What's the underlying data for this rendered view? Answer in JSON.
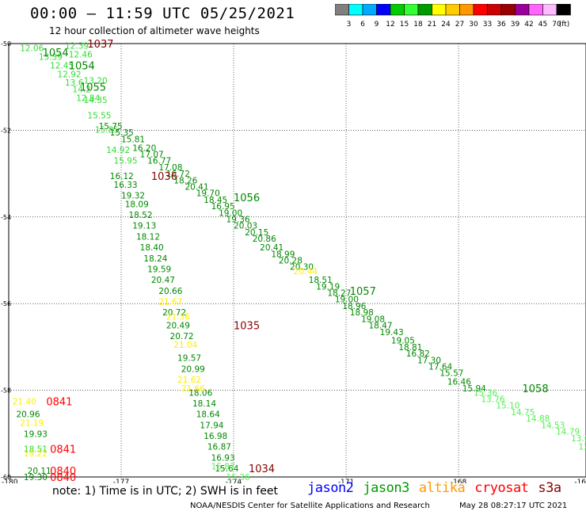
{
  "header": {
    "title": "00:00 – 11:59 UTC 05/25/2021",
    "subtitle": "12 hour collection of altimeter wave heights"
  },
  "colorbar": {
    "colors": [
      "#808080",
      "#00ffff",
      "#00aaff",
      "#0000ff",
      "#00cc00",
      "#33ff33",
      "#009900",
      "#ffff00",
      "#ffcc00",
      "#ff9900",
      "#ff0000",
      "#cc0000",
      "#990000",
      "#990099",
      "#ff66ff",
      "#ffbbff",
      "#000000"
    ],
    "labels": [
      "3",
      "6",
      "9",
      "12",
      "15",
      "18",
      "21",
      "24",
      "27",
      "30",
      "33",
      "36",
      "39",
      "42",
      "45",
      "70"
    ],
    "unit": "(ft)"
  },
  "map": {
    "lon_ticks": [
      "-180",
      "-177",
      "-174",
      "-171",
      "-168",
      "-16"
    ],
    "lat_ticks": [
      "-50",
      "-52",
      "-54",
      "-56",
      "-58",
      "-60"
    ],
    "tracks": [
      {
        "color": "#33dd33",
        "points": [
          {
            "t": "12.06",
            "lon": -179.7,
            "lat": -50.1
          },
          {
            "t": "13.39",
            "lon": -179.2,
            "lat": -50.3
          },
          {
            "t": "12.45",
            "lon": -178.9,
            "lat": -50.5
          },
          {
            "t": "12.92",
            "lon": -178.7,
            "lat": -50.7
          },
          {
            "t": "13.6",
            "lon": -178.5,
            "lat": -50.9
          },
          {
            "t": "14.2",
            "lon": -178.3,
            "lat": -51.05
          },
          {
            "t": "12.84",
            "lon": -178.2,
            "lat": -51.25
          },
          {
            "t": "14.35",
            "lon": -178.0,
            "lat": -51.3
          },
          {
            "t": "15.55",
            "lon": -177.9,
            "lat": -51.65
          },
          {
            "t": "15.85",
            "lon": -177.7,
            "lat": -51.98
          },
          {
            "t": "14.92",
            "lon": -177.4,
            "lat": -52.45
          },
          {
            "t": "15.95",
            "lon": -177.2,
            "lat": -52.7
          },
          {
            "t": "13.20",
            "lon": -178.0,
            "lat": -50.85
          },
          {
            "t": "12.46",
            "lon": -178.4,
            "lat": -50.25
          },
          {
            "t": "12.39",
            "lon": -178.5,
            "lat": -50.05
          }
        ]
      },
      {
        "color": "#008800",
        "points": [
          {
            "t": "15.75",
            "lon": -177.6,
            "lat": -51.9
          },
          {
            "t": "15.35",
            "lon": -177.3,
            "lat": -52.05
          },
          {
            "t": "15.81",
            "lon": -177.0,
            "lat": -52.2
          },
          {
            "t": "16.20",
            "lon": -176.7,
            "lat": -52.4
          },
          {
            "t": "17.07",
            "lon": -176.5,
            "lat": -52.55
          },
          {
            "t": "16.77",
            "lon": -176.3,
            "lat": -52.7
          },
          {
            "t": "17.08",
            "lon": -176.0,
            "lat": -52.85
          },
          {
            "t": "16.72",
            "lon": -175.8,
            "lat": -53.0
          },
          {
            "t": "18.26",
            "lon": -175.6,
            "lat": -53.15
          },
          {
            "t": "20.41",
            "lon": -175.3,
            "lat": -53.3
          },
          {
            "t": "19.70",
            "lon": -175.0,
            "lat": -53.45
          },
          {
            "t": "18.45",
            "lon": -174.8,
            "lat": -53.6
          },
          {
            "t": "16.95",
            "lon": -174.6,
            "lat": -53.75
          },
          {
            "t": "19.00",
            "lon": -174.4,
            "lat": -53.9
          },
          {
            "t": "19.36",
            "lon": -174.2,
            "lat": -54.05
          },
          {
            "t": "20.03",
            "lon": -174.0,
            "lat": -54.2
          },
          {
            "t": "20.15",
            "lon": -173.7,
            "lat": -54.35
          },
          {
            "t": "20.86",
            "lon": -173.5,
            "lat": -54.5
          },
          {
            "t": "20.41",
            "lon": -173.3,
            "lat": -54.7
          },
          {
            "t": "18.99",
            "lon": -173.0,
            "lat": -54.85
          },
          {
            "t": "20.28",
            "lon": -172.8,
            "lat": -55.0
          },
          {
            "t": "20.30",
            "lon": -172.5,
            "lat": -55.15
          },
          {
            "t": "18.51",
            "lon": -172.0,
            "lat": -55.45
          },
          {
            "t": "19.19",
            "lon": -171.8,
            "lat": -55.6
          },
          {
            "t": "18.27",
            "lon": -171.5,
            "lat": -55.75
          },
          {
            "t": "19.00",
            "lon": -171.3,
            "lat": -55.9
          },
          {
            "t": "18.96",
            "lon": -171.1,
            "lat": -56.05
          },
          {
            "t": "18.98",
            "lon": -170.9,
            "lat": -56.2
          },
          {
            "t": "19.08",
            "lon": -170.6,
            "lat": -56.35
          },
          {
            "t": "18.47",
            "lon": -170.4,
            "lat": -56.5
          },
          {
            "t": "19.43",
            "lon": -170.1,
            "lat": -56.65
          },
          {
            "t": "19.05",
            "lon": -169.8,
            "lat": -56.85
          },
          {
            "t": "18.81",
            "lon": -169.6,
            "lat": -57.0
          },
          {
            "t": "16.82",
            "lon": -169.4,
            "lat": -57.15
          },
          {
            "t": "17.30",
            "lon": -169.1,
            "lat": -57.3
          },
          {
            "t": "17.64",
            "lon": -168.8,
            "lat": -57.45
          },
          {
            "t": "15.57",
            "lon": -168.5,
            "lat": -57.6
          },
          {
            "t": "16.46",
            "lon": -168.3,
            "lat": -57.8
          },
          {
            "t": "15.94",
            "lon": -167.9,
            "lat": -57.95
          }
        ]
      },
      {
        "color": "#55ee55",
        "points": [
          {
            "t": "15.36",
            "lon": -167.6,
            "lat": -58.05
          },
          {
            "t": "13.76",
            "lon": -167.4,
            "lat": -58.2
          },
          {
            "t": "15.10",
            "lon": -167.0,
            "lat": -58.35
          },
          {
            "t": "14.75",
            "lon": -166.6,
            "lat": -58.5
          },
          {
            "t": "14.88",
            "lon": -166.2,
            "lat": -58.65
          },
          {
            "t": "14.53",
            "lon": -165.8,
            "lat": -58.8
          },
          {
            "t": "14.79",
            "lon": -165.4,
            "lat": -58.95
          },
          {
            "t": "13.64",
            "lon": -165.0,
            "lat": -59.1
          },
          {
            "t": "12.98",
            "lon": -164.8,
            "lat": -59.3
          }
        ]
      },
      {
        "color": "#008800",
        "points": [
          {
            "t": "16.12",
            "lon": -177.3,
            "lat": -53.05
          },
          {
            "t": "16.33",
            "lon": -177.2,
            "lat": -53.25
          },
          {
            "t": "19.32",
            "lon": -177.0,
            "lat": -53.5
          },
          {
            "t": "18.09",
            "lon": -176.9,
            "lat": -53.7
          },
          {
            "t": "18.52",
            "lon": -176.8,
            "lat": -53.95
          },
          {
            "t": "19.13",
            "lon": -176.7,
            "lat": -54.2
          },
          {
            "t": "18.12",
            "lon": -176.6,
            "lat": -54.45
          },
          {
            "t": "18.40",
            "lon": -176.5,
            "lat": -54.7
          },
          {
            "t": "18.24",
            "lon": -176.4,
            "lat": -54.95
          },
          {
            "t": "19.59",
            "lon": -176.3,
            "lat": -55.2
          },
          {
            "t": "20.47",
            "lon": -176.2,
            "lat": -55.45
          },
          {
            "t": "20.66",
            "lon": -176.0,
            "lat": -55.7
          },
          {
            "t": "20.72",
            "lon": -175.9,
            "lat": -56.2
          },
          {
            "t": "20.49",
            "lon": -175.8,
            "lat": -56.5
          },
          {
            "t": "20.72",
            "lon": -175.7,
            "lat": -56.75
          },
          {
            "t": "19.57",
            "lon": -175.5,
            "lat": -57.25
          },
          {
            "t": "20.99",
            "lon": -175.4,
            "lat": -57.5
          },
          {
            "t": "18.06",
            "lon": -175.2,
            "lat": -58.05
          },
          {
            "t": "18.14",
            "lon": -175.1,
            "lat": -58.3
          },
          {
            "t": "18.64",
            "lon": -175.0,
            "lat": -58.55
          },
          {
            "t": "17.94",
            "lon": -174.9,
            "lat": -58.8
          },
          {
            "t": "16.98",
            "lon": -174.8,
            "lat": -59.05
          },
          {
            "t": "16.87",
            "lon": -174.7,
            "lat": -59.3
          },
          {
            "t": "16.93",
            "lon": -174.6,
            "lat": -59.55
          },
          {
            "t": "15.64",
            "lon": -174.5,
            "lat": -59.8
          }
        ]
      },
      {
        "color": "#ffee00",
        "points": [
          {
            "t": "21.67",
            "lon": -176.0,
            "lat": -55.95
          },
          {
            "t": "21.36",
            "lon": -175.8,
            "lat": -56.3
          },
          {
            "t": "21.04",
            "lon": -175.6,
            "lat": -56.95
          },
          {
            "t": "21.62",
            "lon": -175.5,
            "lat": -57.75
          },
          {
            "t": "21.66",
            "lon": -175.4,
            "lat": -57.95
          },
          {
            "t": "20.44",
            "lon": -172.4,
            "lat": -55.25
          }
        ]
      },
      {
        "color": "#55ee55",
        "points": [
          {
            "t": "15.87",
            "lon": -174.6,
            "lat": -59.75
          },
          {
            "t": "15.36",
            "lon": -174.2,
            "lat": -60.0
          }
        ]
      },
      {
        "color": "#008800",
        "points": [
          {
            "t": "20.96",
            "lon": -179.8,
            "lat": -58.55
          },
          {
            "t": "19.93",
            "lon": -179.6,
            "lat": -59.0
          },
          {
            "t": "20.11",
            "lon": -179.5,
            "lat": -59.85
          },
          {
            "t": "19.30",
            "lon": -179.6,
            "lat": -60.0
          }
        ]
      },
      {
        "color": "#ffee00",
        "points": [
          {
            "t": "21.40",
            "lon": -179.9,
            "lat": -58.25
          },
          {
            "t": "21.19",
            "lon": -179.7,
            "lat": -58.75
          },
          {
            "t": "19.22",
            "lon": -179.6,
            "lat": -59.45
          }
        ]
      },
      {
        "color": "#33dd33",
        "points": [
          {
            "t": "18.51",
            "lon": -179.6,
            "lat": -59.35
          }
        ]
      }
    ],
    "station_labels": [
      {
        "t": "1054",
        "lon": -179.1,
        "lat": -50.2,
        "color": "#008800"
      },
      {
        "t": "1054",
        "lon": -178.4,
        "lat": -50.5,
        "color": "#008800"
      },
      {
        "t": "1037",
        "lon": -177.9,
        "lat": -50.0,
        "color": "#880000"
      },
      {
        "t": "1055",
        "lon": -178.1,
        "lat": -51.0,
        "color": "#008800"
      },
      {
        "t": "1036",
        "lon": -176.2,
        "lat": -53.05,
        "color": "#880000"
      },
      {
        "t": "1056",
        "lon": -174.0,
        "lat": -53.55,
        "color": "#008800"
      },
      {
        "t": "1057",
        "lon": -170.9,
        "lat": -55.7,
        "color": "#008800"
      },
      {
        "t": "1035",
        "lon": -174.0,
        "lat": -56.5,
        "color": "#880000"
      },
      {
        "t": "1058",
        "lon": -166.3,
        "lat": -57.95,
        "color": "#008800"
      },
      {
        "t": "0841",
        "lon": -179.0,
        "lat": -58.25,
        "color": "#ff0000"
      },
      {
        "t": "0841",
        "lon": -178.9,
        "lat": -59.35,
        "color": "#ff0000"
      },
      {
        "t": "0840",
        "lon": -178.9,
        "lat": -59.85,
        "color": "#ff0000"
      },
      {
        "t": "0840",
        "lon": -178.9,
        "lat": -60.0,
        "color": "#ff0000"
      },
      {
        "t": "1034",
        "lon": -173.6,
        "lat": -59.8,
        "color": "#880000"
      }
    ]
  },
  "note": "note: 1) Time is in UTC; 2) SWH is in feet",
  "legend": [
    {
      "t": "jason2",
      "color": "#0000ff"
    },
    {
      "t": "jason3",
      "color": "#009900"
    },
    {
      "t": "altika",
      "color": "#ff9900"
    },
    {
      "t": "cryosat",
      "color": "#ff0000"
    },
    {
      "t": "s3a",
      "color": "#880000"
    }
  ],
  "footer": {
    "left": "NOAA/NESDIS Center for Satellite Applications and Research",
    "right": "May 28 08:27:17 UTC 2021"
  }
}
